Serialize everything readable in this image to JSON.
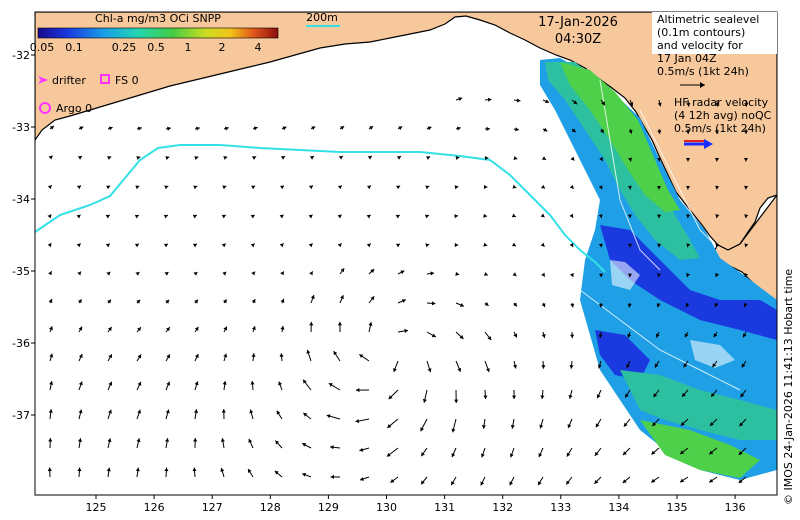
{
  "colorbar": {
    "title": "Chl-a mg/m3 OCi SNPP",
    "ticks": [
      "0.05",
      "0.1",
      "0.25",
      "0.5",
      "1",
      "2",
      "4"
    ]
  },
  "scale_label": "200m",
  "timestamp": {
    "date": "17-Jan-2026",
    "time": "04:30Z"
  },
  "altimetry_legend": [
    "Altimetric sealevel",
    "(0.1m contours)",
    "and velocity for",
    "17 Jan 04Z",
    "0.5m/s (1kt 24h)"
  ],
  "hf_legend": [
    "HF radar velocity",
    "(4 12h avg) noQC",
    "0.5m/s (1kt 24h)"
  ],
  "symbols": {
    "drifter": "drifter",
    "fs": "FS 0",
    "argo": "Argo 0"
  },
  "x_ticks": [
    "125",
    "126",
    "127",
    "128",
    "129",
    "130",
    "131",
    "132",
    "133",
    "134",
    "135",
    "136"
  ],
  "y_ticks": [
    "-32",
    "-33",
    "-34",
    "-35",
    "-36",
    "-37"
  ],
  "credit": "© IMOS 24-Jan-2026 11:41:13 Hobart time",
  "colors": {
    "land": "#f7c89b",
    "contour": "#33e0e6",
    "drifter": "#ff33ff",
    "hf_arrow_red": "#e02020",
    "hf_arrow_blue": "#1a2cff"
  },
  "icons": [
    "drifter-arrow-icon",
    "fs-square-icon",
    "argo-circle-icon"
  ]
}
